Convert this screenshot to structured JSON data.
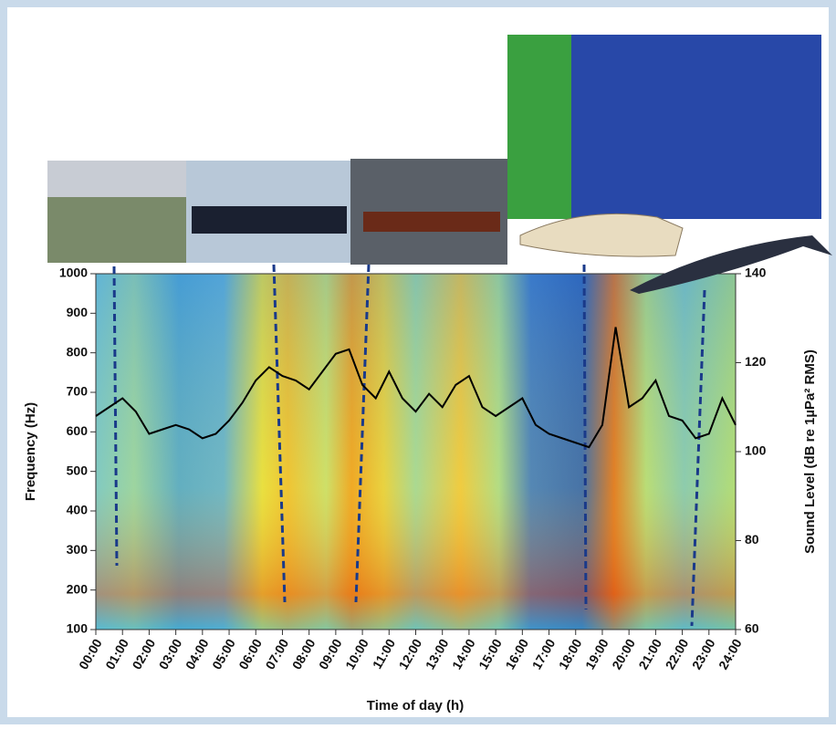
{
  "chart_data": {
    "type": "line",
    "xlabel": "Time of day (h)",
    "ylabel": "Frequency (Hz)",
    "y2label": "Sound Level (dB re 1µPa² RMS)",
    "xlim": [
      0,
      24
    ],
    "ylim": [
      100,
      1000
    ],
    "y2lim": [
      60,
      140
    ],
    "xticks": [
      {
        "value": 0,
        "label": "00:00"
      },
      {
        "value": 1,
        "label": "01:00"
      },
      {
        "value": 2,
        "label": "02:00"
      },
      {
        "value": 3,
        "label": "03:00"
      },
      {
        "value": 4,
        "label": "04:00"
      },
      {
        "value": 5,
        "label": "05:00"
      },
      {
        "value": 6,
        "label": "06:00"
      },
      {
        "value": 7,
        "label": "07:00"
      },
      {
        "value": 8,
        "label": "08:00"
      },
      {
        "value": 9,
        "label": "09:00"
      },
      {
        "value": 10,
        "label": "10:00"
      },
      {
        "value": 11,
        "label": "11:00"
      },
      {
        "value": 12,
        "label": "12:00"
      },
      {
        "value": 13,
        "label": "13:00"
      },
      {
        "value": 14,
        "label": "14:00"
      },
      {
        "value": 15,
        "label": "15:00"
      },
      {
        "value": 16,
        "label": "16:00"
      },
      {
        "value": 17,
        "label": "17:00"
      },
      {
        "value": 18,
        "label": "18:00"
      },
      {
        "value": 19,
        "label": "19:00"
      },
      {
        "value": 20,
        "label": "20:00"
      },
      {
        "value": 21,
        "label": "21:00"
      },
      {
        "value": 22,
        "label": "22:00"
      },
      {
        "value": 23,
        "label": "23:00"
      },
      {
        "value": 24,
        "label": "24:00"
      }
    ],
    "yticks": [
      100,
      200,
      300,
      400,
      500,
      600,
      700,
      800,
      900,
      1000
    ],
    "y2ticks": [
      60,
      80,
      100,
      120,
      140
    ],
    "x": [
      0,
      0.5,
      1,
      1.5,
      2,
      2.5,
      3,
      3.5,
      4,
      4.5,
      5,
      5.5,
      6,
      6.5,
      7,
      7.5,
      8,
      8.5,
      9,
      9.5,
      10,
      10.5,
      11,
      11.5,
      12,
      12.5,
      13,
      13.5,
      14,
      14.5,
      15,
      15.5,
      16,
      16.5,
      17,
      17.5,
      18,
      18.5,
      19,
      19.5,
      20,
      20.5,
      21,
      21.5,
      22,
      22.5,
      23,
      23.5,
      24
    ],
    "series": [
      {
        "color": "#000000",
        "axis": "y2",
        "values": [
          108,
          110,
          112,
          109,
          104,
          105,
          106,
          105,
          103,
          104,
          107,
          111,
          116,
          119,
          117,
          116,
          114,
          118,
          122,
          123,
          115,
          112,
          118,
          112,
          109,
          113,
          110,
          115,
          117,
          110,
          108,
          110,
          112,
          106,
          104,
          103,
          102,
          101,
          106,
          128,
          110,
          112,
          116,
          108,
          107,
          103,
          104,
          112,
          106
        ]
      }
    ]
  }
}
